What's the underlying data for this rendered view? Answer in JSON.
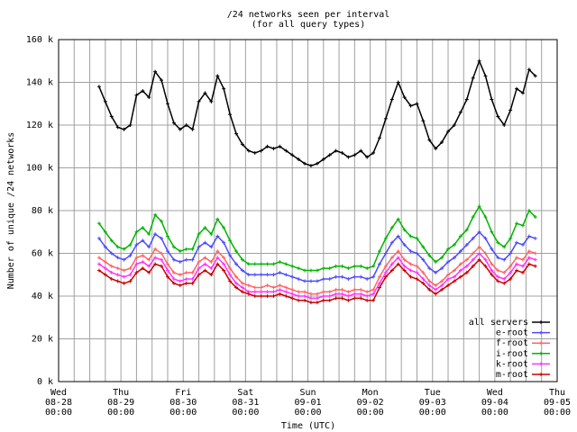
{
  "chart_data": {
    "type": "line",
    "title": "/24 networks seen per interval",
    "subtitle": "(for all query types)",
    "xlabel": "Time (UTC)",
    "ylabel": "Number of unique /24 networks",
    "ylim": [
      0,
      160000
    ],
    "y_ticks": [
      {
        "value": 0,
        "label": "0 k"
      },
      {
        "value": 20000,
        "label": "20 k"
      },
      {
        "value": 40000,
        "label": "40 k"
      },
      {
        "value": 60000,
        "label": "60 k"
      },
      {
        "value": 80000,
        "label": "80 k"
      },
      {
        "value": 100000,
        "label": "100 k"
      },
      {
        "value": 120000,
        "label": "120 k"
      },
      {
        "value": 140000,
        "label": "140 k"
      },
      {
        "value": 160000,
        "label": "160 k"
      }
    ],
    "x_unit": "days since 08-28 00:00 UTC",
    "xlim": [
      0,
      8
    ],
    "x_ticks": [
      {
        "value": 0,
        "lines": [
          "Wed",
          "08-28",
          "00:00"
        ]
      },
      {
        "value": 1,
        "lines": [
          "Thu",
          "08-29",
          "00:00"
        ]
      },
      {
        "value": 2,
        "lines": [
          "Fri",
          "08-30",
          "00:00"
        ]
      },
      {
        "value": 3,
        "lines": [
          "Sat",
          "08-31",
          "00:00"
        ]
      },
      {
        "value": 4,
        "lines": [
          "Sun",
          "09-01",
          "00:00"
        ]
      },
      {
        "value": 5,
        "lines": [
          "Mon",
          "09-02",
          "00:00"
        ]
      },
      {
        "value": 6,
        "lines": [
          "Tue",
          "09-03",
          "00:00"
        ]
      },
      {
        "value": 7,
        "lines": [
          "Wed",
          "09-04",
          "00:00"
        ]
      },
      {
        "value": 8,
        "lines": [
          "Thu",
          "09-05",
          "00:00"
        ]
      }
    ],
    "grid": true,
    "legend_position": "bottom-right",
    "x": [
      0.65,
      0.75,
      0.85,
      0.95,
      1.05,
      1.15,
      1.25,
      1.35,
      1.45,
      1.55,
      1.65,
      1.75,
      1.85,
      1.95,
      2.05,
      2.15,
      2.25,
      2.35,
      2.45,
      2.55,
      2.65,
      2.75,
      2.85,
      2.95,
      3.05,
      3.15,
      3.25,
      3.35,
      3.45,
      3.55,
      3.65,
      3.75,
      3.85,
      3.95,
      4.05,
      4.15,
      4.25,
      4.35,
      4.45,
      4.55,
      4.65,
      4.75,
      4.85,
      4.95,
      5.05,
      5.15,
      5.25,
      5.35,
      5.45,
      5.55,
      5.65,
      5.75,
      5.85,
      5.95,
      6.05,
      6.15,
      6.25,
      6.35,
      6.45,
      6.55,
      6.65,
      6.75,
      6.85,
      6.95,
      7.05,
      7.15,
      7.25,
      7.35,
      7.45,
      7.55,
      7.65
    ],
    "series": [
      {
        "name": "all servers",
        "color": "#000000",
        "values": [
          138000,
          131000,
          124000,
          119000,
          118000,
          120000,
          134000,
          136000,
          133000,
          145000,
          141000,
          130000,
          121000,
          118000,
          120000,
          118000,
          131000,
          135000,
          131000,
          143000,
          137000,
          125000,
          116000,
          111000,
          108000,
          107000,
          108000,
          110000,
          109000,
          110000,
          108000,
          106000,
          104000,
          102000,
          101000,
          102000,
          104000,
          106000,
          108000,
          107000,
          105000,
          106000,
          108000,
          105000,
          107000,
          114000,
          123000,
          132000,
          140000,
          133000,
          129000,
          130000,
          122000,
          113000,
          109000,
          112000,
          117000,
          120000,
          126000,
          132000,
          142000,
          150000,
          143000,
          132000,
          124000,
          120000,
          127000,
          137000,
          135000,
          146000,
          143000
        ]
      },
      {
        "name": "e-root",
        "color": "#4b4bff",
        "values": [
          67000,
          63000,
          60000,
          58000,
          57000,
          59000,
          64000,
          66000,
          63000,
          69000,
          67000,
          61000,
          57000,
          56000,
          57000,
          57000,
          63000,
          65000,
          63000,
          68000,
          65000,
          59000,
          55000,
          52000,
          50000,
          50000,
          50000,
          50000,
          50000,
          51000,
          50000,
          49000,
          48000,
          47000,
          47000,
          47000,
          48000,
          48000,
          49000,
          49000,
          48000,
          49000,
          49000,
          48000,
          49000,
          55000,
          60000,
          65000,
          68000,
          64000,
          61000,
          60000,
          57000,
          53000,
          51000,
          53000,
          56000,
          58000,
          61000,
          64000,
          67000,
          70000,
          67000,
          62000,
          58000,
          57000,
          60000,
          65000,
          64000,
          68000,
          67000
        ]
      },
      {
        "name": "f-root",
        "color": "#ff6464",
        "values": [
          58000,
          56000,
          54000,
          53000,
          52000,
          53000,
          58000,
          59000,
          57000,
          62000,
          60000,
          55000,
          51000,
          50000,
          51000,
          51000,
          56000,
          58000,
          56000,
          61000,
          58000,
          53000,
          49000,
          46000,
          45000,
          44000,
          44000,
          45000,
          44000,
          45000,
          44000,
          43000,
          42000,
          42000,
          41000,
          41000,
          42000,
          42000,
          43000,
          43000,
          42000,
          43000,
          43000,
          42000,
          43000,
          49000,
          54000,
          58000,
          61000,
          57000,
          55000,
          54000,
          51000,
          47000,
          45000,
          47000,
          50000,
          52000,
          55000,
          57000,
          60000,
          63000,
          60000,
          55000,
          52000,
          51000,
          54000,
          58000,
          57000,
          61000,
          60000
        ]
      },
      {
        "name": "i-root",
        "color": "#00b400",
        "values": [
          74000,
          70000,
          66000,
          63000,
          62000,
          64000,
          70000,
          72000,
          69000,
          78000,
          75000,
          68000,
          63000,
          61000,
          62000,
          62000,
          69000,
          72000,
          69000,
          76000,
          72000,
          66000,
          61000,
          57000,
          55000,
          55000,
          55000,
          55000,
          55000,
          56000,
          55000,
          54000,
          53000,
          52000,
          52000,
          52000,
          53000,
          53000,
          54000,
          54000,
          53000,
          54000,
          54000,
          53000,
          54000,
          61000,
          67000,
          72000,
          76000,
          71000,
          68000,
          67000,
          63000,
          59000,
          56000,
          58000,
          62000,
          64000,
          68000,
          71000,
          77000,
          82000,
          77000,
          70000,
          65000,
          63000,
          67000,
          74000,
          73000,
          80000,
          77000
        ]
      },
      {
        "name": "k-root",
        "color": "#ff32ff",
        "values": [
          55000,
          53000,
          51000,
          50000,
          49000,
          50000,
          55000,
          56000,
          54000,
          58000,
          57000,
          52000,
          48000,
          47000,
          48000,
          48000,
          53000,
          55000,
          53000,
          58000,
          55000,
          50000,
          46000,
          44000,
          42000,
          42000,
          42000,
          42000,
          42000,
          43000,
          42000,
          41000,
          40000,
          40000,
          39000,
          39000,
          40000,
          40000,
          41000,
          41000,
          40000,
          41000,
          41000,
          40000,
          41000,
          46000,
          51000,
          55000,
          58000,
          54000,
          52000,
          51000,
          48000,
          45000,
          43000,
          45000,
          48000,
          49000,
          52000,
          54000,
          57000,
          60000,
          57000,
          52000,
          49000,
          48000,
          51000,
          55000,
          54000,
          58000,
          57000
        ]
      },
      {
        "name": "m-root",
        "color": "#c80000",
        "values": [
          52000,
          50000,
          48000,
          47000,
          46000,
          47000,
          51000,
          53000,
          51000,
          55000,
          54000,
          49000,
          46000,
          45000,
          46000,
          46000,
          50000,
          52000,
          50000,
          55000,
          52000,
          47000,
          44000,
          42000,
          41000,
          40000,
          40000,
          40000,
          40000,
          41000,
          40000,
          39000,
          38000,
          38000,
          37000,
          37000,
          38000,
          38000,
          39000,
          39000,
          38000,
          39000,
          39000,
          38000,
          38000,
          44000,
          49000,
          52000,
          55000,
          52000,
          49000,
          48000,
          46000,
          43000,
          41000,
          43000,
          45000,
          47000,
          49000,
          51000,
          54000,
          57000,
          54000,
          50000,
          47000,
          46000,
          48000,
          52000,
          51000,
          55000,
          54000
        ]
      }
    ]
  }
}
